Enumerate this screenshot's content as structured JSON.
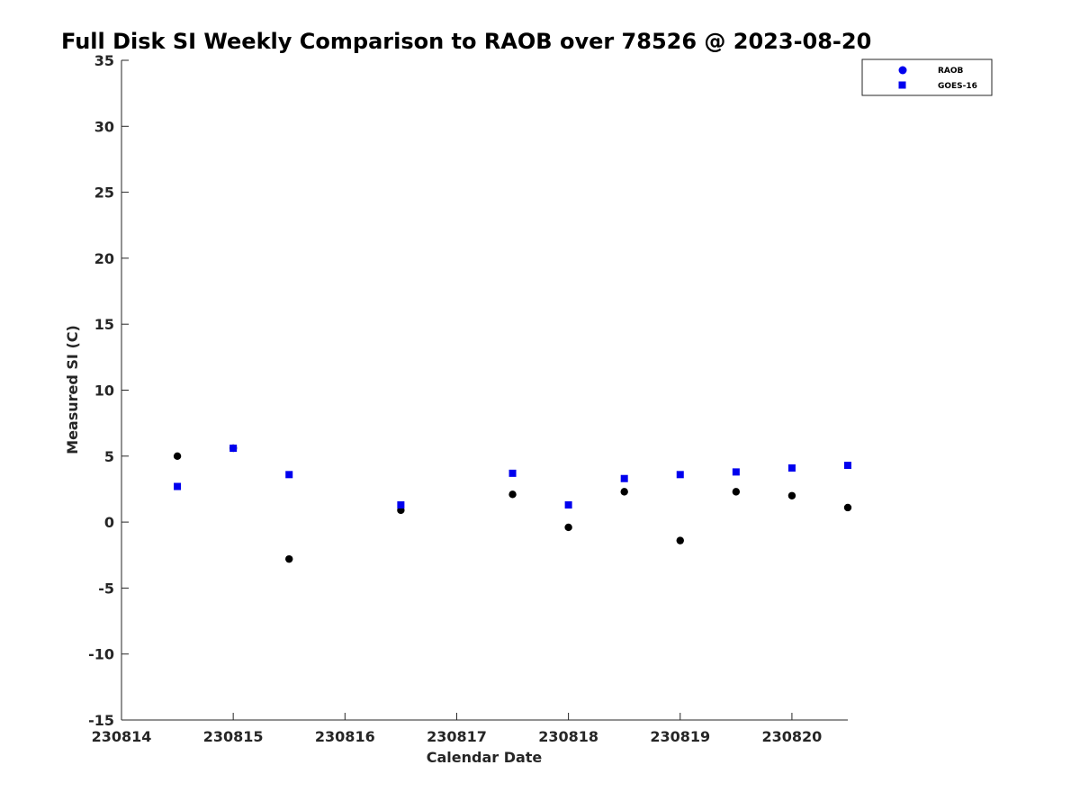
{
  "chart_data": {
    "type": "scatter",
    "title": "Full Disk SI Weekly Comparison to RAOB over 78526 @ 2023-08-20",
    "xlabel": "Calendar Date",
    "ylabel": "Measured SI (C)",
    "x_ticks": [
      "230814",
      "230815",
      "230816",
      "230817",
      "230818",
      "230819",
      "230820"
    ],
    "y_ticks": [
      "-15",
      "-10",
      "-5",
      "0",
      "5",
      "10",
      "15",
      "20",
      "25",
      "30",
      "35"
    ],
    "xlim": [
      0,
      6.5
    ],
    "ylim": [
      -15,
      35
    ],
    "legend_position": "top-right",
    "grid": false,
    "series": [
      {
        "name": "RAOB",
        "marker": "circle",
        "color": "#000000",
        "legend_color": "#0000ee",
        "x": [
          0.5,
          1.0,
          1.5,
          2.5,
          3.5,
          4.0,
          4.5,
          5.0,
          5.5,
          6.0,
          6.5
        ],
        "y": [
          5.0,
          5.6,
          -2.8,
          0.9,
          2.1,
          -0.4,
          2.3,
          -1.4,
          2.3,
          2.0,
          1.1
        ]
      },
      {
        "name": "GOES-16",
        "marker": "square",
        "color": "#0000ee",
        "legend_color": "#0000ee",
        "x": [
          0.5,
          1.0,
          1.5,
          2.5,
          3.5,
          4.0,
          4.5,
          5.0,
          5.5,
          6.0,
          6.5
        ],
        "y": [
          2.7,
          5.6,
          3.6,
          1.3,
          3.7,
          1.3,
          3.3,
          3.6,
          3.8,
          4.1,
          4.3
        ]
      }
    ]
  }
}
